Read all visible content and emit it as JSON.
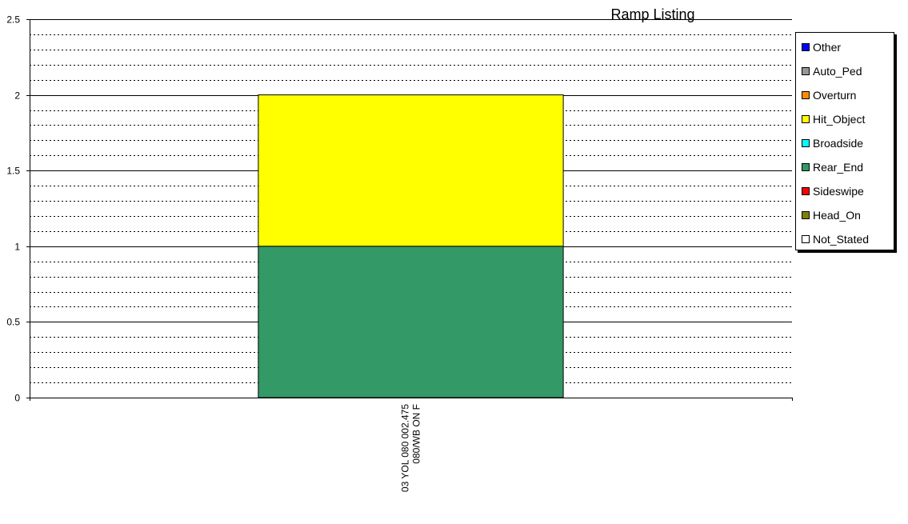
{
  "chart_data": {
    "type": "bar",
    "stacked": true,
    "title": "Ramp Listing",
    "xlabel": "",
    "ylabel": "",
    "categories": [
      "03 YOL 080 002.475\n080/WB ON F"
    ],
    "ylim": [
      0,
      2.5
    ],
    "yticks": [
      "0",
      "0.5",
      "1",
      "1.5",
      "2",
      "2.5"
    ],
    "grid": true,
    "legend_position": "right",
    "series": [
      {
        "name": "Other",
        "color": "#0000ff",
        "values": [
          0
        ]
      },
      {
        "name": "Auto_Ped",
        "color": "#969696",
        "values": [
          0
        ]
      },
      {
        "name": "Overturn",
        "color": "#ff8c00",
        "values": [
          0
        ]
      },
      {
        "name": "Hit_Object",
        "color": "#ffff00",
        "values": [
          1
        ]
      },
      {
        "name": "Broadside",
        "color": "#00ffff",
        "values": [
          0
        ]
      },
      {
        "name": "Rear_End",
        "color": "#339966",
        "values": [
          1
        ]
      },
      {
        "name": "Sideswipe",
        "color": "#ff0000",
        "values": [
          0
        ]
      },
      {
        "name": "Head_On",
        "color": "#808000",
        "values": [
          0
        ]
      },
      {
        "name": "Not_Stated",
        "color": "#ffffff",
        "values": [
          0
        ]
      }
    ],
    "stack_order": [
      "Not_Stated",
      "Head_On",
      "Sideswipe",
      "Rear_End",
      "Broadside",
      "Hit_Object",
      "Overturn",
      "Auto_Ped",
      "Other"
    ]
  }
}
